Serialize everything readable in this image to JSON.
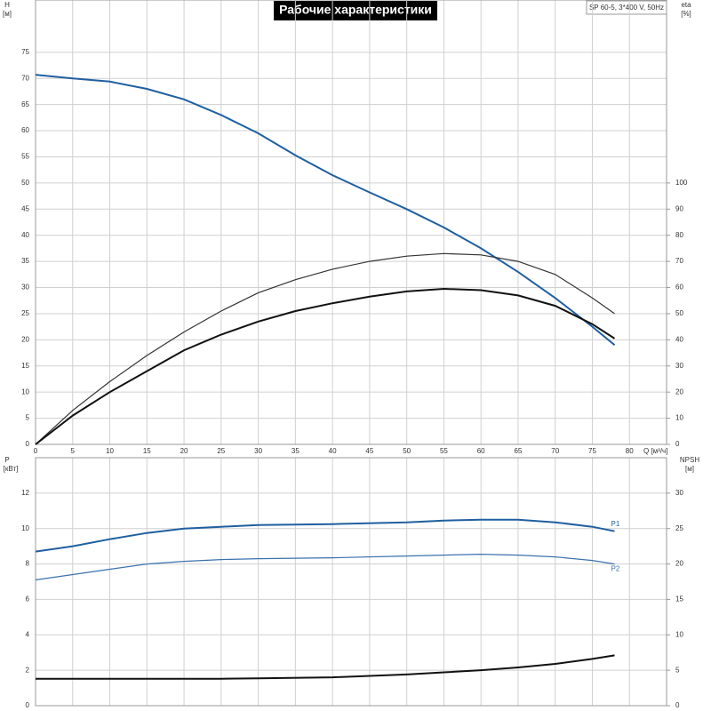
{
  "chart_data": [
    {
      "type": "line",
      "title": "Рабочие характеристики",
      "subtitle": "SP 60-5, 3*400 V, 50Hz",
      "ylabel": "H",
      "yunit": "[м]",
      "y2label": "eta",
      "y2unit": "[%]",
      "xlabel": "Q [м³/ч]",
      "x": [
        0,
        5,
        10,
        15,
        20,
        25,
        30,
        35,
        40,
        45,
        50,
        55,
        60,
        65,
        70,
        75,
        78
      ],
      "xlim": [
        0,
        85
      ],
      "xticks": [
        0,
        5,
        10,
        15,
        20,
        25,
        30,
        35,
        40,
        45,
        50,
        55,
        60,
        65,
        70,
        75,
        80
      ],
      "ylim": [
        0,
        85
      ],
      "yticks": [
        0,
        5,
        10,
        15,
        20,
        25,
        30,
        35,
        40,
        45,
        50,
        55,
        60,
        65,
        70,
        75
      ],
      "y2lim": [
        0,
        170
      ],
      "y2ticks": [
        0,
        10,
        20,
        30,
        40,
        50,
        60,
        70,
        80,
        90,
        100
      ],
      "grid": true,
      "series": [
        {
          "name": "H",
          "color": "#1f5fa0",
          "width": 2,
          "values": [
            70.7,
            70,
            69.4,
            68,
            66,
            63,
            59.5,
            55.3,
            51.5,
            48.2,
            45,
            41.5,
            37.5,
            33,
            28,
            22.5,
            19
          ]
        },
        {
          "name": "eta",
          "color": "#333333",
          "width": 1.2,
          "axis": "y2",
          "values": [
            0,
            13,
            24,
            34,
            43,
            51,
            58,
            63,
            67,
            70,
            72,
            73,
            72.5,
            70,
            65,
            56,
            50
          ]
        },
        {
          "name": "eta",
          "color": "#111111",
          "width": 2,
          "axis": "y2",
          "values": [
            0,
            11,
            20,
            28,
            36,
            42,
            47,
            51,
            54,
            56.5,
            58.5,
            59.5,
            59,
            57,
            53,
            46,
            40.5
          ]
        }
      ]
    },
    {
      "type": "line",
      "ylabel": "P",
      "yunit": "[кВт]",
      "y2label": "NPSH",
      "y2unit": "[м]",
      "x": [
        0,
        5,
        10,
        15,
        20,
        25,
        30,
        40,
        50,
        55,
        60,
        65,
        70,
        75,
        78
      ],
      "xlim": [
        0,
        85
      ],
      "ylim": [
        0,
        14
      ],
      "yticks": [
        0,
        2,
        4,
        6,
        8,
        10,
        12
      ],
      "y2lim": [
        0,
        35
      ],
      "y2ticks": [
        0,
        5,
        10,
        15,
        20,
        25,
        30
      ],
      "grid": true,
      "series": [
        {
          "name": "P1",
          "color": "#1f5fa0",
          "width": 2,
          "values": [
            8.7,
            9.0,
            9.4,
            9.75,
            10.0,
            10.1,
            10.2,
            10.25,
            10.35,
            10.45,
            10.5,
            10.5,
            10.35,
            10.1,
            9.85
          ]
        },
        {
          "name": "P2",
          "color": "#3a72ad",
          "width": 1.2,
          "values": [
            7.1,
            7.4,
            7.7,
            8.0,
            8.15,
            8.25,
            8.3,
            8.35,
            8.45,
            8.5,
            8.55,
            8.5,
            8.4,
            8.2,
            8.0
          ]
        },
        {
          "name": "NPSH",
          "color": "#111111",
          "width": 2,
          "axis": "y2",
          "values": [
            3.8,
            3.8,
            3.8,
            3.8,
            3.8,
            3.8,
            3.85,
            4.0,
            4.4,
            4.7,
            5.0,
            5.4,
            5.9,
            6.6,
            7.1
          ]
        }
      ]
    }
  ]
}
